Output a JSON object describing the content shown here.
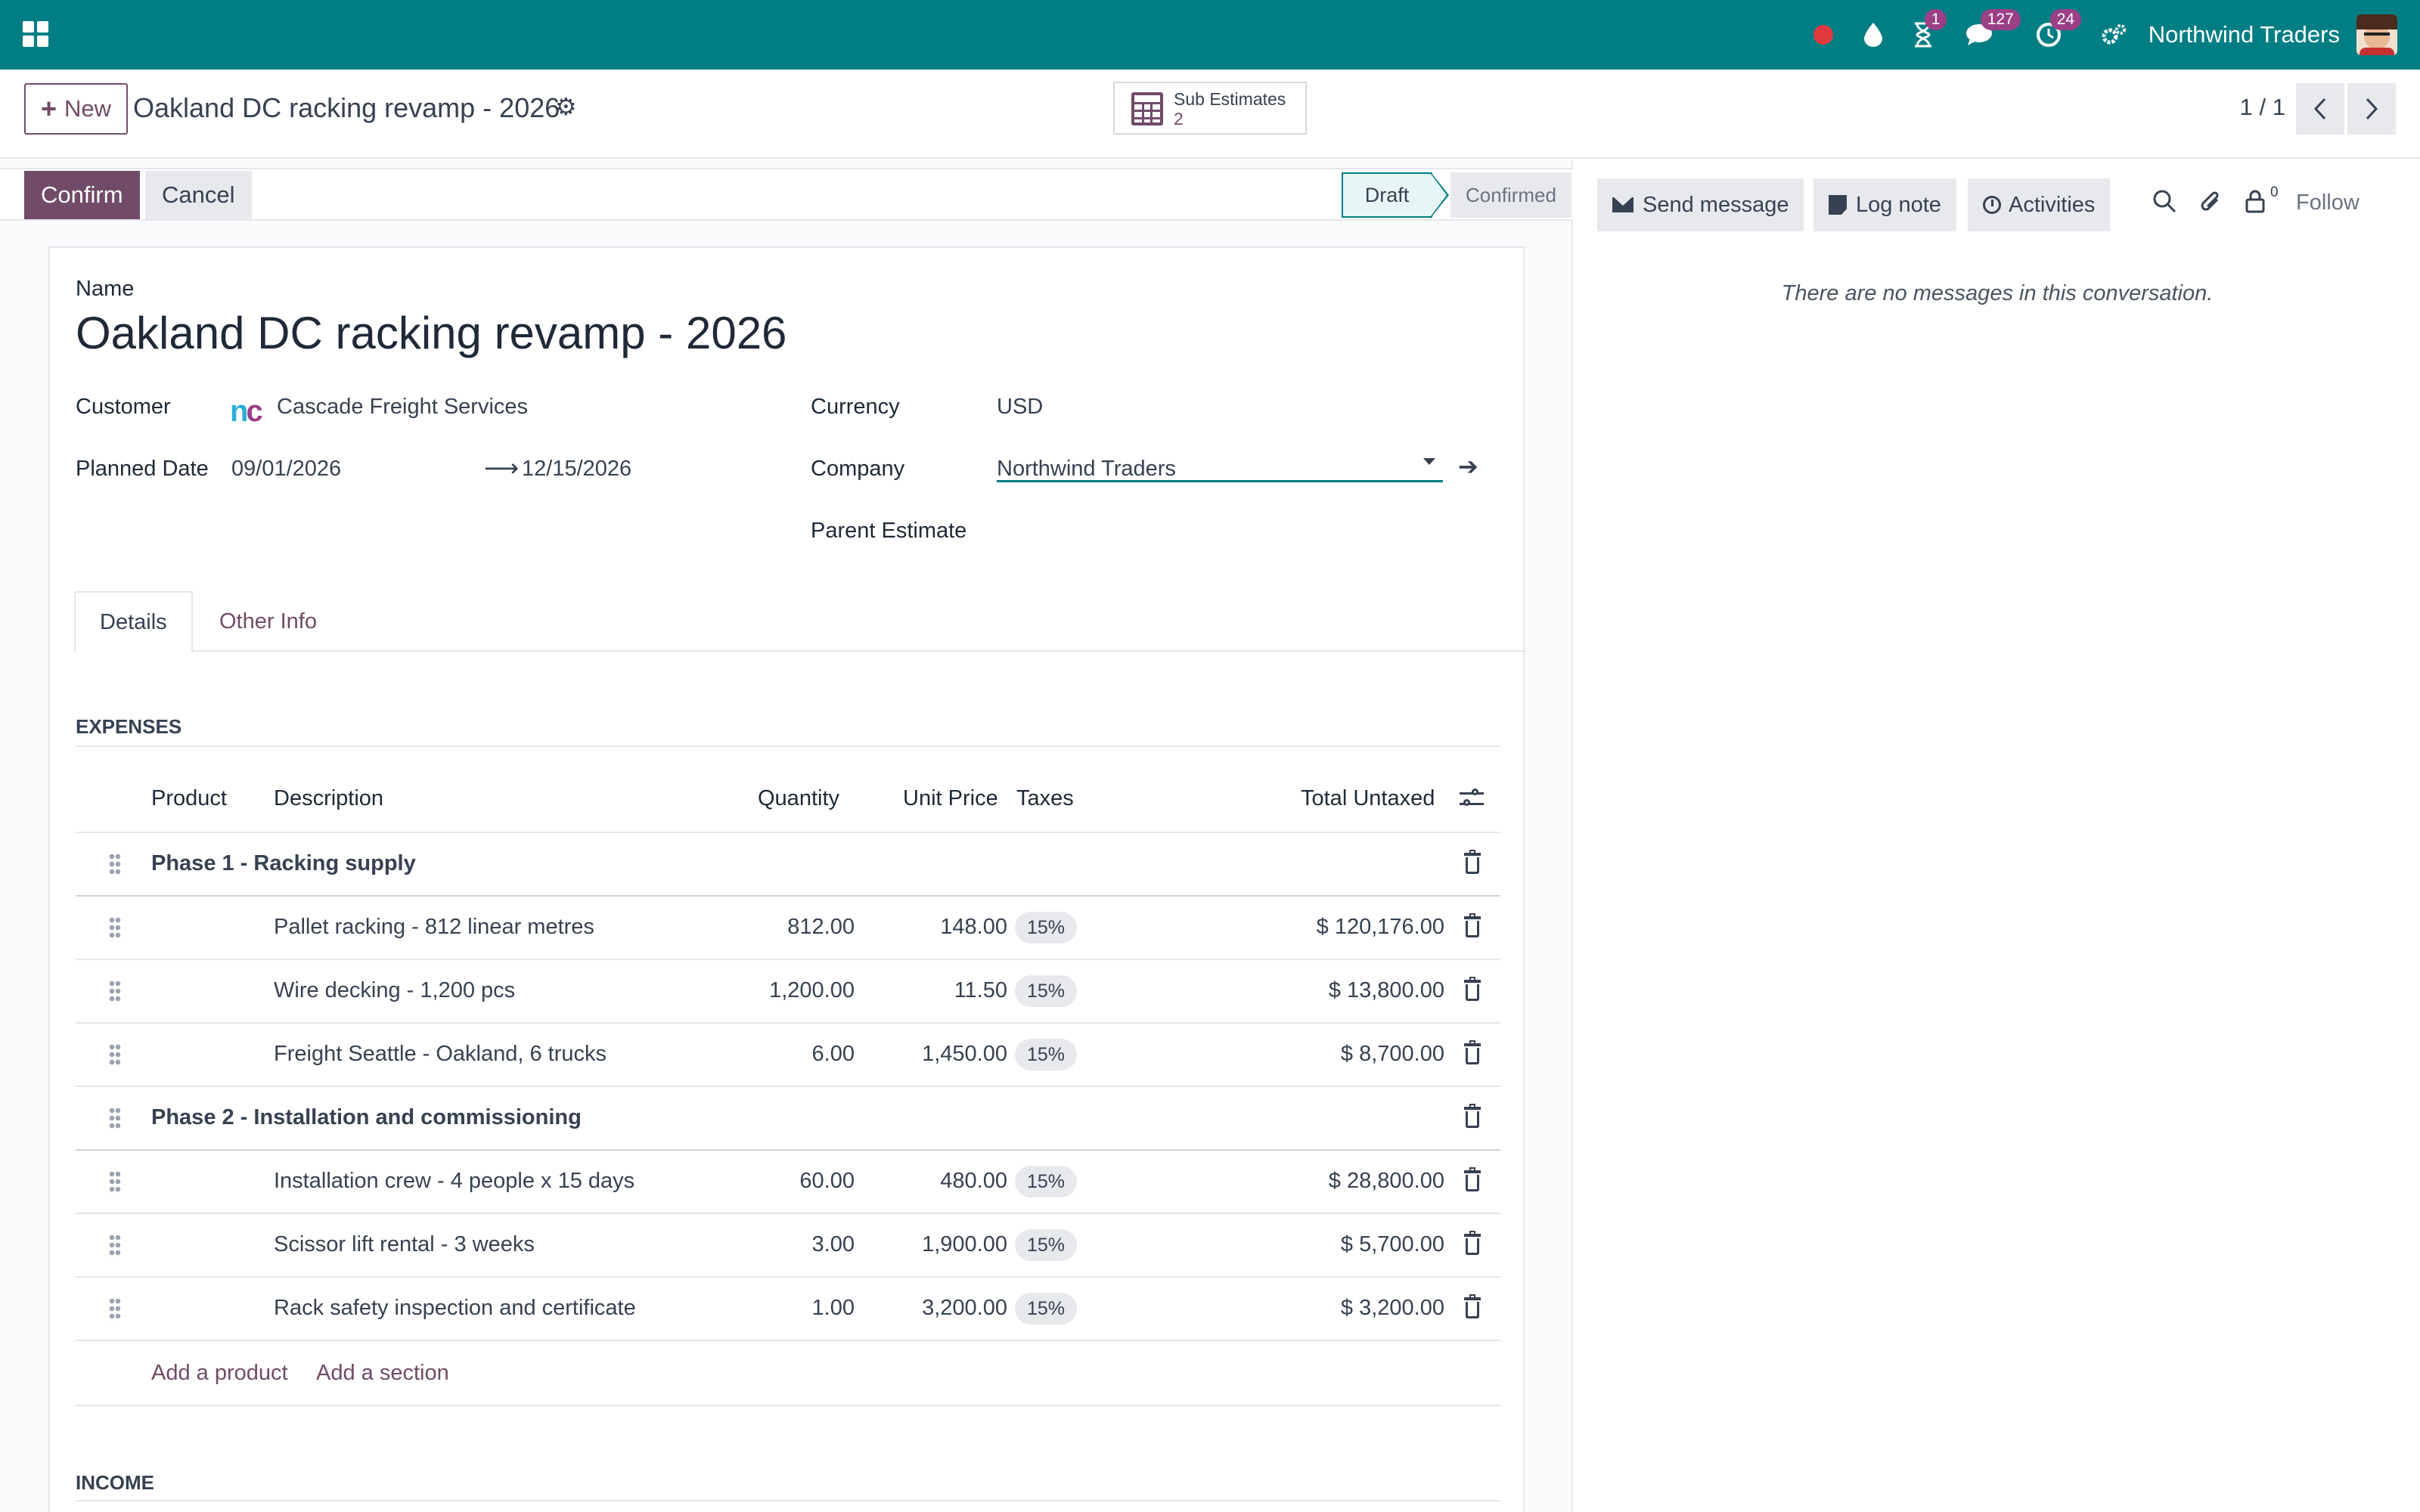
{
  "navbar": {
    "company": "Northwind Traders",
    "activity_badge": "1",
    "messages_badge": "127",
    "timer_badge": "24"
  },
  "control_panel": {
    "new_label": "New",
    "record_title": "Oakland DC racking revamp - 2026",
    "smart_button": {
      "label": "Sub Estimates",
      "value": "2"
    },
    "pager": "1 / 1"
  },
  "statusbar": {
    "confirm_label": "Confirm",
    "cancel_label": "Cancel",
    "stages": [
      "Draft",
      "Confirmed"
    ],
    "active_stage": "Draft"
  },
  "form": {
    "name_label": "Name",
    "name_value": "Oakland DC racking revamp - 2026",
    "customer_label": "Customer",
    "customer_value": "Cascade Freight Services",
    "customer_logo_text": "nc",
    "planned_date_label": "Planned Date",
    "planned_date_start": "09/01/2026",
    "planned_date_end": "12/15/2026",
    "currency_label": "Currency",
    "currency_value": "USD",
    "company_label": "Company",
    "company_value": "Northwind Traders",
    "parent_estimate_label": "Parent Estimate",
    "tabs": [
      "Details",
      "Other Info"
    ]
  },
  "expenses": {
    "title": "EXPENSES",
    "columns": {
      "product": "Product",
      "description": "Description",
      "quantity": "Quantity",
      "unit_price": "Unit Price",
      "taxes": "Taxes",
      "total": "Total Untaxed"
    },
    "rows": [
      {
        "section": "Phase 1 - Racking supply"
      },
      {
        "description": "Pallet racking - 812 linear metres",
        "quantity": "812.00",
        "unit_price": "148.00",
        "tax": "15%",
        "total": "$ 120,176.00"
      },
      {
        "description": "Wire decking - 1,200 pcs",
        "quantity": "1,200.00",
        "unit_price": "11.50",
        "tax": "15%",
        "total": "$ 13,800.00"
      },
      {
        "description": "Freight Seattle - Oakland, 6 trucks",
        "quantity": "6.00",
        "unit_price": "1,450.00",
        "tax": "15%",
        "total": "$ 8,700.00"
      },
      {
        "section": "Phase 2 - Installation and commissioning"
      },
      {
        "description": "Installation crew - 4 people x 15 days",
        "quantity": "60.00",
        "unit_price": "480.00",
        "tax": "15%",
        "total": "$ 28,800.00"
      },
      {
        "description": "Scissor lift rental - 3 weeks",
        "quantity": "3.00",
        "unit_price": "1,900.00",
        "tax": "15%",
        "total": "$ 5,700.00"
      },
      {
        "description": "Rack safety inspection and certificate",
        "quantity": "1.00",
        "unit_price": "3,200.00",
        "tax": "15%",
        "total": "$ 3,200.00"
      }
    ],
    "add_product": "Add a product",
    "add_section": "Add a section"
  },
  "income": {
    "title": "INCOME"
  },
  "chatter": {
    "send_message": "Send message",
    "log_note": "Log note",
    "activities": "Activities",
    "follower_count": "0",
    "follow": "Follow",
    "empty": "There are no messages in this conversation."
  }
}
